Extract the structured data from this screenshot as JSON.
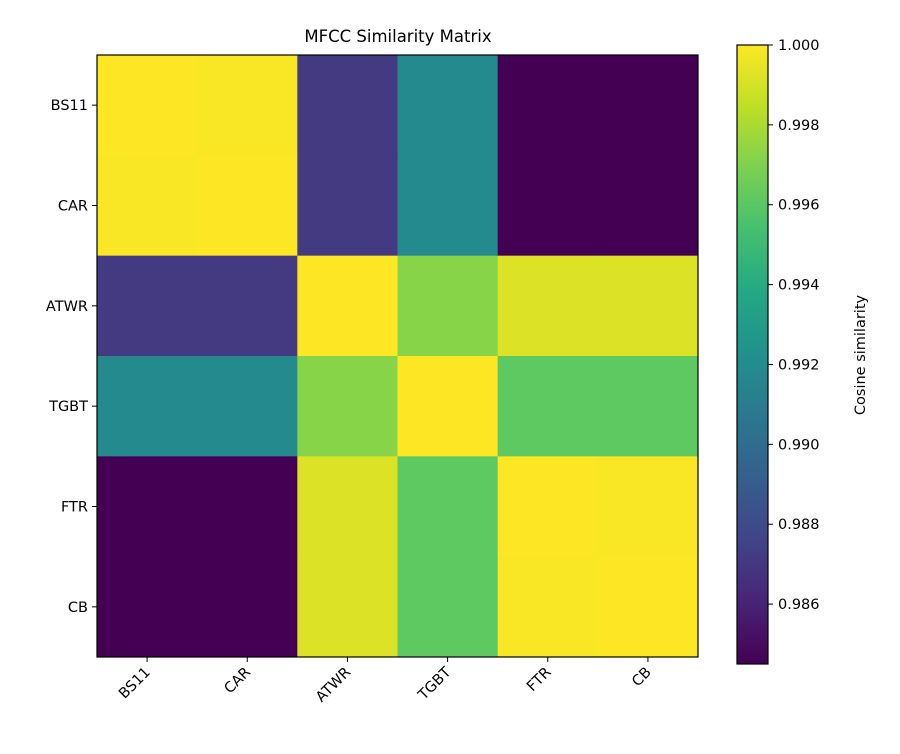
{
  "chart_data": {
    "type": "heatmap",
    "title": "MFCC Similarity Matrix",
    "labels": [
      "BS11",
      "CAR",
      "ATWR",
      "TGBT",
      "FTR",
      "CB"
    ],
    "matrix": [
      [
        1.0,
        0.9999,
        0.9871,
        0.9918,
        0.9845,
        0.9845
      ],
      [
        0.9999,
        1.0,
        0.9871,
        0.9918,
        0.9845,
        0.9845
      ],
      [
        0.9871,
        0.9871,
        1.0,
        0.9972,
        0.9992,
        0.9992
      ],
      [
        0.9918,
        0.9918,
        0.9972,
        1.0,
        0.9961,
        0.9961
      ],
      [
        0.9845,
        0.9845,
        0.9992,
        0.9961,
        1.0,
        0.9999
      ],
      [
        0.9845,
        0.9845,
        0.9992,
        0.9961,
        0.9999,
        1.0
      ]
    ],
    "colormap": "viridis",
    "colorbar": {
      "label": "Cosine similarity",
      "range": [
        0.9845,
        1.0
      ],
      "ticks": [
        "0.986",
        "0.988",
        "0.990",
        "0.992",
        "0.994",
        "0.996",
        "0.998",
        "1.000"
      ]
    }
  }
}
